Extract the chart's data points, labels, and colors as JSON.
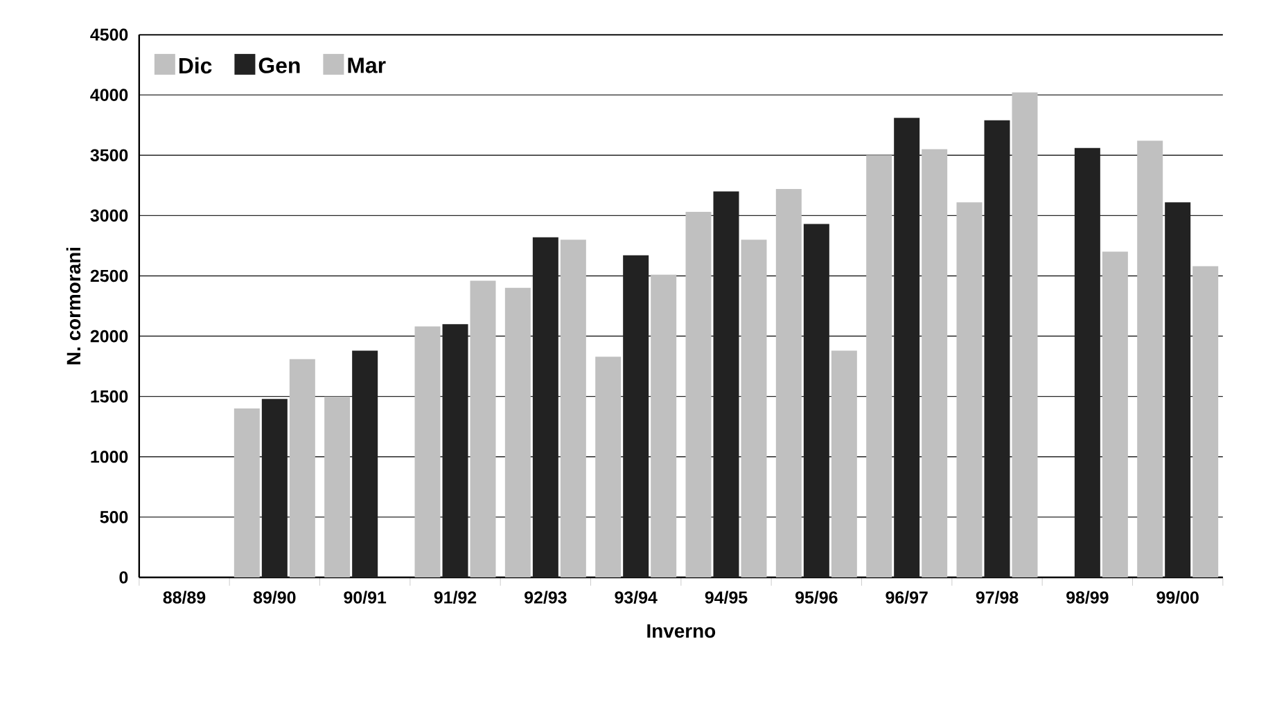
{
  "chart_data": {
    "type": "bar",
    "xlabel": "Inverno",
    "ylabel": "N. cormorani",
    "categories": [
      "88/89",
      "89/90",
      "90/91",
      "91/92",
      "92/93",
      "93/94",
      "94/95",
      "95/96",
      "96/97",
      "97/98",
      "98/99",
      "99/00"
    ],
    "series": [
      {
        "name": "Dic",
        "color": "#c0c0c0",
        "values": [
          null,
          1400,
          1500,
          2080,
          2400,
          1830,
          3030,
          3220,
          3500,
          3110,
          null,
          3620
        ]
      },
      {
        "name": "Gen",
        "color": "#222222",
        "values": [
          null,
          1480,
          1880,
          2100,
          2820,
          2670,
          3200,
          2930,
          3810,
          3790,
          3560,
          3110
        ]
      },
      {
        "name": "Mar",
        "color": "#c0c0c0",
        "values": [
          null,
          1810,
          null,
          2460,
          2800,
          2510,
          2800,
          1880,
          3550,
          4020,
          2700,
          2580
        ]
      }
    ],
    "ylim": [
      0,
      4500
    ],
    "yticks": [
      0,
      500,
      1000,
      1500,
      2000,
      2500,
      3000,
      3500,
      4000,
      4500
    ],
    "grid": "y",
    "legend": "top left"
  }
}
